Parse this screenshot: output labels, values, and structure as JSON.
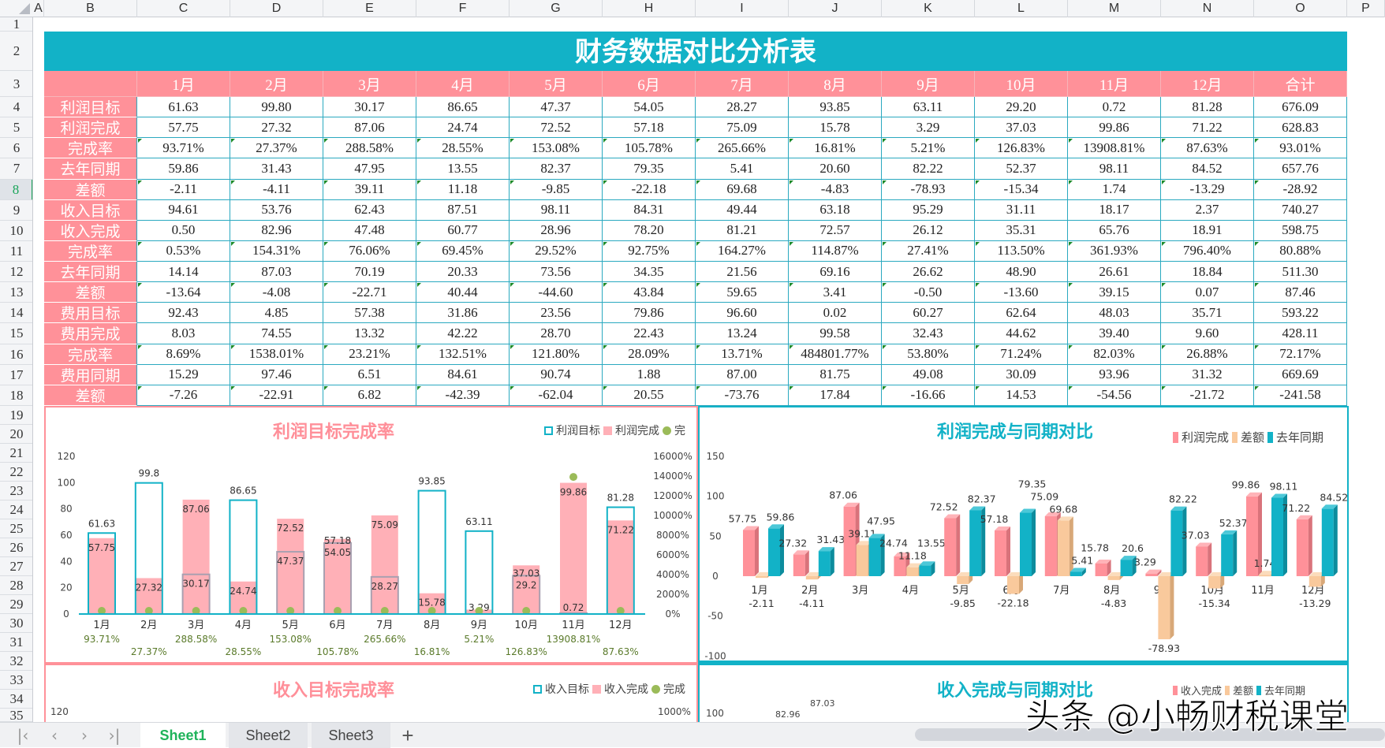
{
  "sheet": {
    "columns": [
      "A",
      "B",
      "C",
      "D",
      "E",
      "F",
      "G",
      "H",
      "I",
      "J",
      "K",
      "L",
      "M",
      "N",
      "O",
      "P"
    ],
    "selected_row": 8,
    "title": "财务数据对比分析表",
    "header": [
      "",
      "1月",
      "2月",
      "3月",
      "4月",
      "5月",
      "6月",
      "7月",
      "8月",
      "9月",
      "10月",
      "11月",
      "12月",
      "合计"
    ],
    "rows": [
      {
        "label": "利润目标",
        "values": [
          "61.63",
          "99.80",
          "30.17",
          "86.65",
          "47.37",
          "54.05",
          "28.27",
          "93.85",
          "63.11",
          "29.20",
          "0.72",
          "81.28",
          "676.09"
        ]
      },
      {
        "label": "利润完成",
        "values": [
          "57.75",
          "27.32",
          "87.06",
          "24.74",
          "72.52",
          "57.18",
          "75.09",
          "15.78",
          "3.29",
          "37.03",
          "99.86",
          "71.22",
          "628.83"
        ]
      },
      {
        "label": "完成率",
        "values": [
          "93.71%",
          "27.37%",
          "288.58%",
          "28.55%",
          "153.08%",
          "105.78%",
          "265.66%",
          "16.81%",
          "5.21%",
          "126.83%",
          "13908.81%",
          "87.63%",
          "93.01%"
        ],
        "text_flag": true
      },
      {
        "label": "去年同期",
        "values": [
          "59.86",
          "31.43",
          "47.95",
          "13.55",
          "82.37",
          "79.35",
          "5.41",
          "20.60",
          "82.22",
          "52.37",
          "98.11",
          "84.52",
          "657.76"
        ]
      },
      {
        "label": "差额",
        "values": [
          "-2.11",
          "-4.11",
          "39.11",
          "11.18",
          "-9.85",
          "-22.18",
          "69.68",
          "-4.83",
          "-78.93",
          "-15.34",
          "1.74",
          "-13.29",
          "-28.92"
        ],
        "text_flag": true
      },
      {
        "label": "收入目标",
        "values": [
          "94.61",
          "53.76",
          "62.43",
          "87.51",
          "98.11",
          "84.31",
          "49.44",
          "63.18",
          "95.29",
          "31.11",
          "18.17",
          "2.37",
          "740.27"
        ]
      },
      {
        "label": "收入完成",
        "values": [
          "0.50",
          "82.96",
          "47.48",
          "60.77",
          "28.96",
          "78.20",
          "81.21",
          "72.57",
          "26.12",
          "35.31",
          "65.76",
          "18.91",
          "598.75"
        ]
      },
      {
        "label": "完成率",
        "values": [
          "0.53%",
          "154.31%",
          "76.06%",
          "69.45%",
          "29.52%",
          "92.75%",
          "164.27%",
          "114.87%",
          "27.41%",
          "113.50%",
          "361.93%",
          "796.40%",
          "80.88%"
        ],
        "text_flag": true
      },
      {
        "label": "去年同期",
        "values": [
          "14.14",
          "87.03",
          "70.19",
          "20.33",
          "73.56",
          "34.35",
          "21.56",
          "69.16",
          "26.62",
          "48.90",
          "26.61",
          "18.84",
          "511.30"
        ]
      },
      {
        "label": "差额",
        "values": [
          "-13.64",
          "-4.08",
          "-22.71",
          "40.44",
          "-44.60",
          "43.84",
          "59.65",
          "3.41",
          "-0.50",
          "-13.60",
          "39.15",
          "0.07",
          "87.46"
        ],
        "text_flag": true
      },
      {
        "label": "费用目标",
        "values": [
          "92.43",
          "4.85",
          "57.38",
          "31.86",
          "23.56",
          "79.86",
          "96.60",
          "0.02",
          "60.27",
          "62.64",
          "48.03",
          "35.71",
          "593.22"
        ]
      },
      {
        "label": "费用完成",
        "values": [
          "8.03",
          "74.55",
          "13.32",
          "42.22",
          "28.70",
          "22.43",
          "13.24",
          "99.58",
          "32.43",
          "44.62",
          "39.40",
          "9.60",
          "428.11"
        ]
      },
      {
        "label": "完成率",
        "values": [
          "8.69%",
          "1538.01%",
          "23.21%",
          "132.51%",
          "121.80%",
          "28.09%",
          "13.71%",
          "484801.77%",
          "53.80%",
          "71.24%",
          "82.03%",
          "26.88%",
          "72.17%"
        ],
        "text_flag": true
      },
      {
        "label": "费用同期",
        "values": [
          "15.29",
          "97.46",
          "6.51",
          "84.61",
          "90.74",
          "1.88",
          "87.00",
          "81.75",
          "49.08",
          "30.09",
          "93.96",
          "31.32",
          "669.69"
        ]
      },
      {
        "label": "差额",
        "values": [
          "-7.26",
          "-22.91",
          "6.82",
          "-42.39",
          "-62.04",
          "20.55",
          "-73.76",
          "17.84",
          "-16.66",
          "14.53",
          "-54.56",
          "-21.72",
          "-241.58"
        ],
        "text_flag": true
      }
    ]
  },
  "colors": {
    "teal": "#12B2C7",
    "pink": "#FF9199",
    "bar_pink": "#FFB0B7",
    "peach": "#F9C99C",
    "green": "#9BBB59",
    "title_pink": "#FF8F99"
  },
  "chart_data": [
    {
      "type": "bar+scatter",
      "title": "利润目标完成率",
      "legend": [
        "利润目标",
        "利润完成",
        "完"
      ],
      "legend_placement": "top-right",
      "categories": [
        "1月",
        "2月",
        "3月",
        "4月",
        "5月",
        "6月",
        "7月",
        "8月",
        "9月",
        "10月",
        "11月",
        "12月"
      ],
      "series": [
        {
          "name": "利润目标",
          "style": "outline",
          "values": [
            61.63,
            99.8,
            30.17,
            86.65,
            47.37,
            54.05,
            28.27,
            93.85,
            63.11,
            29.2,
            0.72,
            81.28
          ]
        },
        {
          "name": "利润完成",
          "style": "filled",
          "values": [
            57.75,
            27.32,
            87.06,
            24.74,
            72.52,
            57.18,
            75.09,
            15.78,
            3.29,
            37.03,
            99.86,
            71.22
          ]
        },
        {
          "name": "完成率",
          "axis": "secondary",
          "style": "dot",
          "values": [
            93.71,
            27.37,
            288.58,
            28.55,
            153.08,
            105.78,
            265.66,
            16.81,
            5.21,
            126.83,
            13908.81,
            87.63
          ],
          "labels": [
            "93.71%",
            "27.37%",
            "288.58%",
            "28.55%",
            "153.08%",
            "105.78%",
            "265.66%",
            "16.81%",
            "5.21%",
            "126.83%",
            "13908.81%",
            "87.63%"
          ]
        }
      ],
      "yticks": [
        "0",
        "20",
        "40",
        "60",
        "80",
        "100",
        "120"
      ],
      "ylim": [
        0,
        120
      ],
      "y2ticks": [
        "0%",
        "2000%",
        "4000%",
        "6000%",
        "8000%",
        "10000%",
        "12000%",
        "14000%",
        "16000%"
      ],
      "y2lim": [
        0,
        16000
      ],
      "grid": false
    },
    {
      "type": "bar3d",
      "title": "利润完成与同期对比",
      "legend": [
        "利润完成",
        "差额",
        "去年同期"
      ],
      "legend_placement": "top-right",
      "categories": [
        "1月",
        "2月",
        "3月",
        "4月",
        "5月",
        "6月",
        "7月",
        "8月",
        "9月",
        "10月",
        "11月",
        "12月"
      ],
      "series": [
        {
          "name": "利润完成",
          "values": [
            57.75,
            27.32,
            87.06,
            24.74,
            72.52,
            57.18,
            75.09,
            15.78,
            3.29,
            37.03,
            99.86,
            71.22
          ]
        },
        {
          "name": "差额",
          "values": [
            -2.11,
            -4.11,
            39.11,
            11.18,
            -9.85,
            -22.18,
            69.68,
            -4.83,
            -78.93,
            -15.34,
            1.74,
            -13.29
          ]
        },
        {
          "name": "去年同期",
          "values": [
            59.86,
            31.43,
            47.95,
            13.55,
            82.37,
            79.35,
            5.41,
            20.6,
            82.22,
            52.37,
            98.11,
            84.52
          ]
        }
      ],
      "yticks": [
        "-100",
        "-50",
        "0",
        "50",
        "100",
        "150"
      ],
      "ylim": [
        -100,
        150
      ],
      "grid": false
    },
    {
      "type": "bar+scatter",
      "title": "收入目标完成率",
      "legend": [
        "收入目标",
        "收入完成",
        "完成"
      ],
      "visible_yticks": [
        "120"
      ],
      "visible_y2ticks": [
        "1000%"
      ]
    },
    {
      "type": "bar3d",
      "title": "收入完成与同期对比",
      "legend": [
        "收入完成",
        "差额",
        "去年同期"
      ],
      "visible_yticks": [
        "100"
      ],
      "visible_labels": [
        "82.96",
        "87.03"
      ]
    }
  ],
  "tabs": {
    "nav": [
      "|‹",
      "‹",
      "›",
      "›|"
    ],
    "sheets": [
      "Sheet1",
      "Sheet2",
      "Sheet3"
    ],
    "active": "Sheet1",
    "add": "+"
  },
  "watermark": "头条 @小畅财税课堂"
}
